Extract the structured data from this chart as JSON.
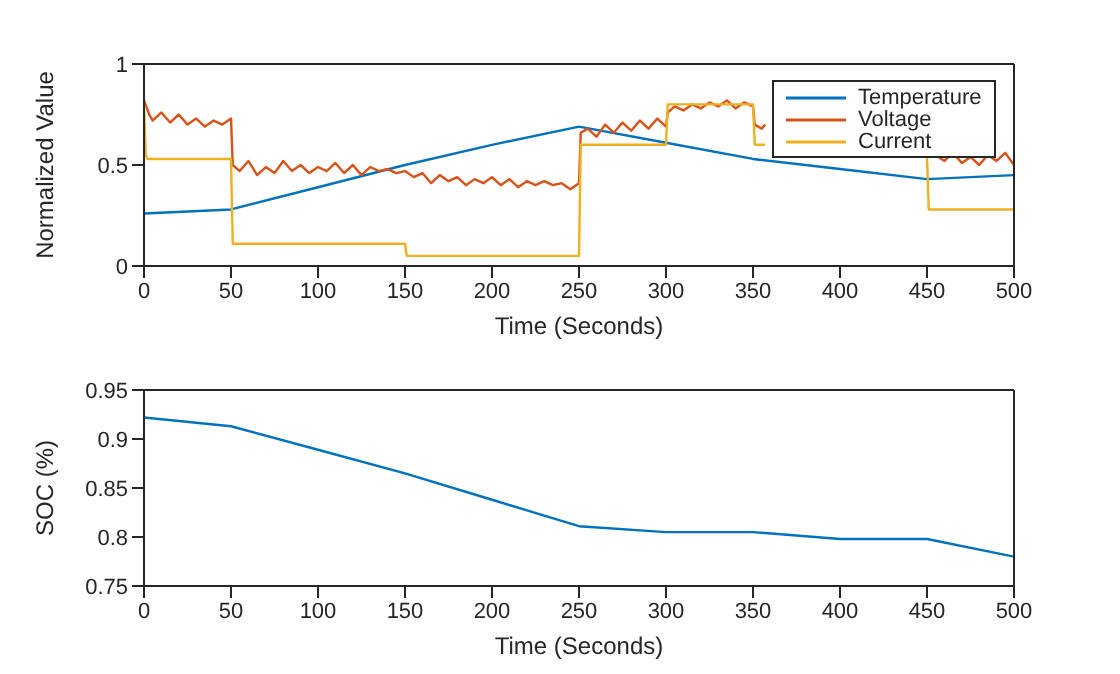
{
  "chart_data": [
    {
      "type": "line",
      "xlabel": "Time (Seconds)",
      "ylabel": "Normalized Value",
      "xlim": [
        0,
        500
      ],
      "xticks": [
        0,
        50,
        100,
        150,
        200,
        250,
        300,
        350,
        400,
        450,
        500
      ],
      "ylim": [
        0,
        1
      ],
      "yticks": [
        0,
        0.5,
        1
      ],
      "legend": "top right",
      "grid": false,
      "series": [
        {
          "name": "Temperature",
          "color": "#0072bd",
          "x": [
            0,
            50,
            100,
            150,
            200,
            250,
            300,
            350,
            400,
            450,
            500
          ],
          "values": [
            0.26,
            0.28,
            0.39,
            0.5,
            0.6,
            0.69,
            0.61,
            0.53,
            0.48,
            0.43,
            0.45
          ]
        },
        {
          "name": "Voltage",
          "color": "#d95319",
          "x": [
            0,
            3,
            5,
            10,
            15,
            20,
            25,
            30,
            35,
            40,
            45,
            50,
            51,
            55,
            60,
            65,
            70,
            75,
            80,
            85,
            90,
            95,
            100,
            105,
            110,
            115,
            120,
            125,
            130,
            135,
            140,
            145,
            150,
            155,
            160,
            165,
            170,
            175,
            180,
            185,
            190,
            195,
            200,
            205,
            210,
            215,
            220,
            225,
            230,
            235,
            240,
            245,
            250,
            251,
            255,
            260,
            265,
            270,
            275,
            280,
            285,
            290,
            295,
            300,
            301,
            305,
            310,
            315,
            320,
            325,
            330,
            335,
            340,
            345,
            350,
            351,
            355,
            357,
            358,
            452,
            455,
            460,
            465,
            470,
            475,
            480,
            485,
            490,
            495,
            500
          ],
          "values": [
            0.82,
            0.75,
            0.72,
            0.76,
            0.71,
            0.75,
            0.7,
            0.73,
            0.69,
            0.72,
            0.7,
            0.73,
            0.5,
            0.47,
            0.52,
            0.45,
            0.49,
            0.46,
            0.52,
            0.47,
            0.5,
            0.46,
            0.49,
            0.47,
            0.51,
            0.46,
            0.5,
            0.45,
            0.49,
            0.47,
            0.48,
            0.46,
            0.47,
            0.44,
            0.46,
            0.41,
            0.45,
            0.42,
            0.44,
            0.4,
            0.43,
            0.41,
            0.44,
            0.4,
            0.43,
            0.39,
            0.42,
            0.4,
            0.42,
            0.4,
            0.41,
            0.38,
            0.41,
            0.66,
            0.68,
            0.64,
            0.7,
            0.66,
            0.71,
            0.67,
            0.72,
            0.68,
            0.73,
            0.69,
            0.76,
            0.79,
            0.77,
            0.8,
            0.78,
            0.81,
            0.79,
            0.82,
            0.78,
            0.81,
            0.79,
            0.7,
            0.68,
            0.7,
            null,
            null,
            0.55,
            0.52,
            0.56,
            0.51,
            0.54,
            0.5,
            0.55,
            0.52,
            0.56,
            0.5
          ]
        },
        {
          "name": "Current",
          "color": "#edb120",
          "x": [
            0,
            1,
            2,
            50,
            51,
            150,
            151,
            250,
            251,
            300,
            301,
            350,
            351,
            357,
            358,
            450,
            451,
            500
          ],
          "values": [
            0.8,
            0.55,
            0.53,
            0.53,
            0.11,
            0.11,
            0.05,
            0.05,
            0.6,
            0.6,
            0.8,
            0.8,
            0.6,
            0.6,
            null,
            0.54,
            0.28,
            0.28
          ]
        }
      ]
    },
    {
      "type": "line",
      "xlabel": "Time (Seconds)",
      "ylabel": "SOC (%)",
      "xlim": [
        0,
        500
      ],
      "xticks": [
        0,
        50,
        100,
        150,
        200,
        250,
        300,
        350,
        400,
        450,
        500
      ],
      "ylim": [
        0.75,
        0.95
      ],
      "yticks": [
        0.75,
        0.8,
        0.85,
        0.9,
        0.95
      ],
      "grid": false,
      "series": [
        {
          "color": "#0072bd",
          "x": [
            0,
            50,
            100,
            150,
            200,
            250,
            300,
            350,
            400,
            450,
            500
          ],
          "values": [
            0.922,
            0.913,
            0.889,
            0.865,
            0.838,
            0.811,
            0.805,
            0.805,
            0.798,
            0.798,
            0.78
          ]
        }
      ]
    }
  ]
}
